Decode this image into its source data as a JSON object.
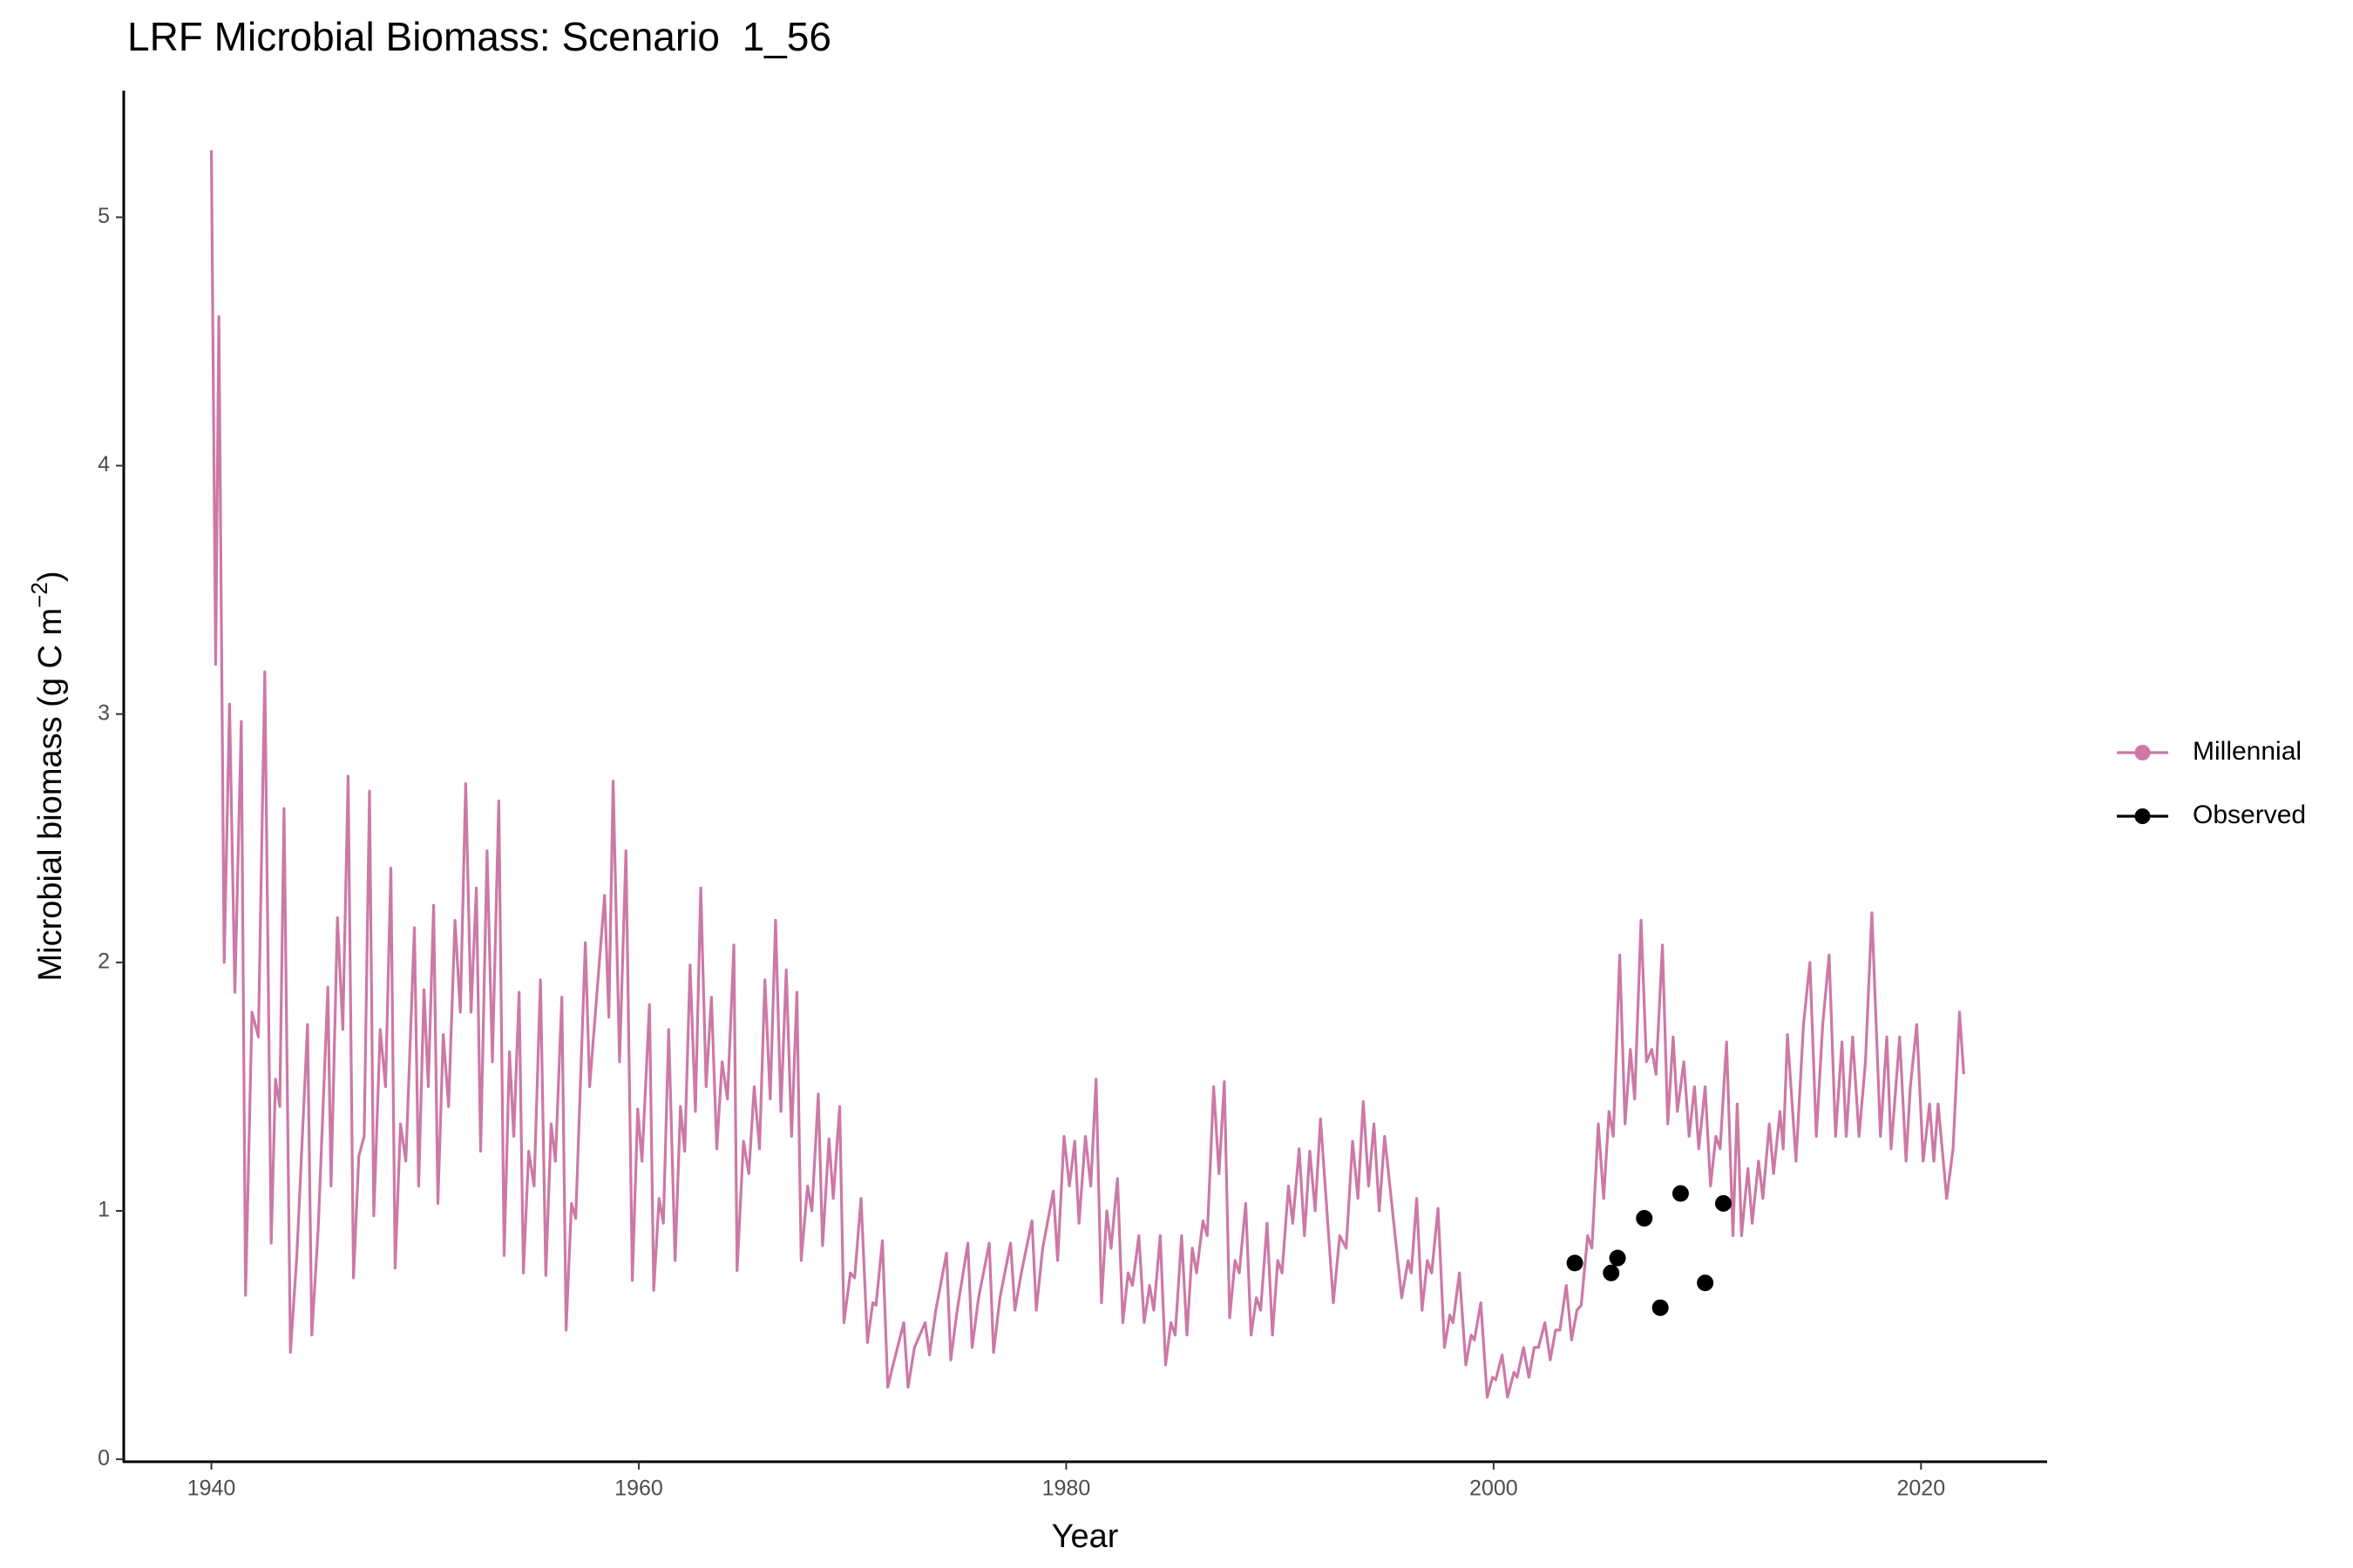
{
  "chart_data": {
    "type": "line",
    "title": "LRF Microbial Biomass: Scenario  1_56",
    "x_label": "Year",
    "y_label": {
      "text": "Microbial biomass (g C m",
      "superscript": "−2",
      "suffix": ")"
    },
    "xlim": [
      1935.9,
      2025.9
    ],
    "xticks": [
      1940,
      1960,
      1980,
      2000,
      2020
    ],
    "ylim": [
      -0.01,
      5.51
    ],
    "yticks": [
      0,
      1,
      2,
      3,
      4,
      5
    ],
    "grid": false,
    "legend": "right",
    "series": [
      {
        "name": "Millennial",
        "color": "#cc79a7",
        "type": "line",
        "x": [
          1940.0,
          1940.2,
          1940.35,
          1940.6,
          1940.85,
          1941.1,
          1941.4,
          1941.6,
          1941.9,
          1942.2,
          1942.5,
          1942.8,
          1943.0,
          1943.2,
          1943.4,
          1943.7,
          1944.0,
          1944.5,
          1944.7,
          1945.0,
          1945.45,
          1945.6,
          1945.9,
          1946.15,
          1946.4,
          1946.65,
          1946.9,
          1947.15,
          1947.4,
          1947.6,
          1947.9,
          1948.15,
          1948.4,
          1948.6,
          1948.85,
          1949.1,
          1949.5,
          1949.7,
          1949.95,
          1950.15,
          1950.4,
          1950.6,
          1950.85,
          1951.1,
          1951.4,
          1951.65,
          1951.9,
          1952.15,
          1952.4,
          1952.6,
          1952.9,
          1953.15,
          1953.45,
          1953.7,
          1953.95,
          1954.15,
          1954.4,
          1954.6,
          1954.85,
          1955.1,
          1955.4,
          1955.65,
          1955.9,
          1956.1,
          1956.4,
          1956.6,
          1956.85,
          1957.05,
          1957.5,
          1957.7,
          1958.4,
          1958.6,
          1958.8,
          1959.1,
          1959.4,
          1959.7,
          1959.95,
          1960.15,
          1960.5,
          1960.7,
          1960.95,
          1961.15,
          1961.4,
          1961.7,
          1961.95,
          1962.15,
          1962.4,
          1962.65,
          1962.9,
          1963.15,
          1963.4,
          1963.65,
          1963.9,
          1964.15,
          1964.45,
          1964.6,
          1964.9,
          1965.15,
          1965.4,
          1965.65,
          1965.9,
          1966.15,
          1966.4,
          1966.65,
          1966.9,
          1967.15,
          1967.4,
          1967.6,
          1967.9,
          1968.1,
          1968.4,
          1968.6,
          1968.9,
          1969.1,
          1969.4,
          1969.6,
          1969.9,
          1970.1,
          1970.4,
          1970.7,
          1970.95,
          1971.1,
          1971.4,
          1971.65,
          1971.9,
          1972.4,
          1972.6,
          1972.9,
          1973.4,
          1973.6,
          1973.9,
          1974.4,
          1974.6,
          1974.9,
          1975.4,
          1975.6,
          1975.9,
          1976.4,
          1976.6,
          1976.9,
          1977.4,
          1977.6,
          1977.9,
          1978.4,
          1978.6,
          1978.9,
          1979.4,
          1979.6,
          1979.9,
          1980.15,
          1980.4,
          1980.6,
          1980.9,
          1981.15,
          1981.4,
          1981.65,
          1981.9,
          1982.1,
          1982.4,
          1982.65,
          1982.9,
          1983.1,
          1983.4,
          1983.65,
          1983.9,
          1984.1,
          1984.4,
          1984.65,
          1984.9,
          1985.1,
          1985.4,
          1985.65,
          1985.9,
          1986.1,
          1986.4,
          1986.6,
          1986.9,
          1987.15,
          1987.4,
          1987.65,
          1987.9,
          1988.1,
          1988.4,
          1988.65,
          1988.9,
          1989.1,
          1989.4,
          1989.65,
          1989.9,
          1990.1,
          1990.4,
          1990.6,
          1990.9,
          1991.15,
          1991.4,
          1991.65,
          1991.9,
          1992.5,
          1992.8,
          1993.1,
          1993.4,
          1993.65,
          1993.9,
          1994.15,
          1994.4,
          1994.65,
          1994.9,
          1995.7,
          1996.0,
          1996.15,
          1996.4,
          1996.65,
          1996.9,
          1997.1,
          1997.4,
          1997.7,
          1997.95,
          1998.1,
          1998.4,
          1998.7,
          1998.95,
          1999.1,
          1999.4,
          1999.7,
          1999.95,
          2000.1,
          2000.4,
          2000.65,
          2000.95,
          2001.1,
          2001.4,
          2001.65,
          2001.9,
          2002.1,
          2002.4,
          2002.65,
          2002.9,
          2003.1,
          2003.4,
          2003.65,
          2003.9,
          2004.1,
          2004.4,
          2004.6,
          2004.9,
          2005.15,
          2005.4,
          2005.6,
          2005.9,
          2006.15,
          2006.4,
          2006.6,
          2006.9,
          2007.15,
          2007.4,
          2007.6,
          2007.9,
          2008.15,
          2008.4,
          2008.6,
          2008.9,
          2009.15,
          2009.4,
          2009.6,
          2009.9,
          2010.15,
          2010.4,
          2010.6,
          2010.9,
          2011.2,
          2011.4,
          2011.6,
          2011.9,
          2012.1,
          2012.4,
          2012.6,
          2012.9,
          2013.1,
          2013.4,
          2013.55,
          2013.75,
          2014.15,
          2014.5,
          2014.8,
          2015.1,
          2015.4,
          2015.7,
          2016.0,
          2016.3,
          2016.5,
          2016.8,
          2017.1,
          2017.4,
          2017.7,
          2018.1,
          2018.4,
          2018.6,
          2019.0,
          2019.3,
          2019.5,
          2019.8,
          2020.1,
          2020.4,
          2020.6,
          2020.8,
          2021.2,
          2021.5,
          2021.8,
          2022.0
        ],
        "values": [
          5.27,
          3.2,
          4.6,
          2.0,
          3.04,
          1.88,
          2.97,
          0.66,
          1.8,
          1.7,
          3.17,
          0.87,
          1.53,
          1.42,
          2.62,
          0.43,
          0.82,
          1.75,
          0.5,
          0.93,
          1.9,
          1.1,
          2.18,
          1.73,
          2.75,
          0.73,
          1.22,
          1.3,
          2.69,
          0.98,
          1.73,
          1.5,
          2.38,
          0.77,
          1.35,
          1.2,
          2.14,
          1.1,
          1.89,
          1.5,
          2.23,
          1.03,
          1.71,
          1.42,
          2.17,
          1.8,
          2.72,
          1.8,
          2.3,
          1.24,
          2.45,
          1.6,
          2.65,
          0.82,
          1.64,
          1.3,
          1.88,
          0.75,
          1.24,
          1.1,
          1.93,
          0.74,
          1.35,
          1.2,
          1.86,
          0.52,
          1.03,
          0.97,
          2.08,
          1.5,
          2.27,
          1.78,
          2.73,
          1.6,
          2.45,
          0.72,
          1.41,
          1.2,
          1.83,
          0.68,
          1.05,
          0.95,
          1.73,
          0.8,
          1.42,
          1.24,
          1.99,
          1.4,
          2.3,
          1.5,
          1.86,
          1.25,
          1.6,
          1.45,
          2.07,
          0.76,
          1.28,
          1.15,
          1.5,
          1.25,
          1.93,
          1.45,
          2.17,
          1.4,
          1.97,
          1.3,
          1.88,
          0.8,
          1.1,
          1.0,
          1.47,
          0.86,
          1.29,
          1.05,
          1.42,
          0.55,
          0.75,
          0.73,
          1.05,
          0.47,
          0.63,
          0.62,
          0.88,
          0.29,
          0.38,
          0.55,
          0.29,
          0.45,
          0.55,
          0.42,
          0.6,
          0.83,
          0.4,
          0.6,
          0.87,
          0.45,
          0.65,
          0.87,
          0.43,
          0.65,
          0.87,
          0.6,
          0.75,
          0.96,
          0.6,
          0.85,
          1.08,
          0.8,
          1.3,
          1.1,
          1.28,
          0.95,
          1.3,
          1.1,
          1.53,
          0.63,
          1.0,
          0.85,
          1.13,
          0.55,
          0.75,
          0.7,
          0.9,
          0.55,
          0.7,
          0.6,
          0.9,
          0.38,
          0.55,
          0.5,
          0.9,
          0.5,
          0.85,
          0.75,
          0.96,
          0.9,
          1.5,
          1.15,
          1.52,
          0.57,
          0.8,
          0.75,
          1.03,
          0.5,
          0.65,
          0.6,
          0.95,
          0.5,
          0.8,
          0.75,
          1.1,
          0.95,
          1.25,
          0.9,
          1.24,
          1.0,
          1.37,
          0.63,
          0.9,
          0.85,
          1.28,
          1.05,
          1.44,
          1.1,
          1.35,
          1.0,
          1.3,
          0.65,
          0.8,
          0.75,
          1.05,
          0.6,
          0.8,
          0.75,
          1.01,
          0.45,
          0.58,
          0.55,
          0.75,
          0.38,
          0.5,
          0.48,
          0.63,
          0.25,
          0.33,
          0.32,
          0.42,
          0.25,
          0.35,
          0.33,
          0.45,
          0.33,
          0.45,
          0.45,
          0.55,
          0.4,
          0.52,
          0.52,
          0.7,
          0.48,
          0.6,
          0.62,
          0.9,
          0.85,
          1.35,
          1.05,
          1.4,
          1.3,
          2.03,
          1.35,
          1.65,
          1.45,
          2.17,
          1.6,
          1.65,
          1.55,
          2.07,
          1.35,
          1.7,
          1.4,
          1.6,
          1.3,
          1.5,
          1.25,
          1.5,
          1.1,
          1.3,
          1.25,
          1.68,
          0.9,
          1.43,
          0.9,
          1.17,
          0.95,
          1.2,
          1.05,
          1.35,
          1.15,
          1.4,
          1.25,
          1.71,
          1.2,
          1.75,
          2.0,
          1.3,
          1.75,
          2.03,
          1.3,
          1.68,
          1.3,
          1.7,
          1.3,
          1.6,
          2.2,
          1.3,
          1.7,
          1.25,
          1.7,
          1.2,
          1.5,
          1.75,
          1.2,
          1.43,
          1.2,
          1.43,
          1.05,
          1.25,
          1.8,
          1.55
        ]
      },
      {
        "name": "Observed",
        "color": "#000000",
        "type": "scatter",
        "x": [
          2003.8,
          2005.5,
          2005.8,
          2007.05,
          2007.8,
          2008.75,
          2009.9,
          2010.75
        ],
        "values": [
          0.79,
          0.75,
          0.81,
          0.97,
          0.61,
          1.07,
          0.71,
          1.03
        ]
      }
    ]
  }
}
